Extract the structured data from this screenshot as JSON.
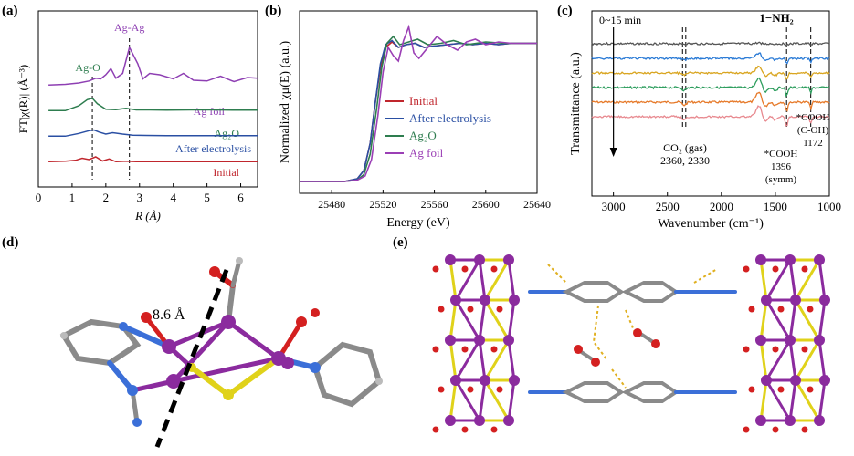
{
  "panels": {
    "a": {
      "label": "(a)"
    },
    "b": {
      "label": "(b)"
    },
    "c": {
      "label": "(c)"
    },
    "d": {
      "label": "(d)"
    },
    "e": {
      "label": "(e)"
    }
  },
  "chart_data": [
    {
      "id": "a",
      "type": "line",
      "xlabel": "R (Å)",
      "ylabel": "FT|χ(R)| (Å⁻³)",
      "xlim": [
        0,
        6.5
      ],
      "xticks": [
        0,
        1,
        2,
        3,
        4,
        5,
        6
      ],
      "annotations": [
        {
          "text": "Ag-O",
          "x": 1.6
        },
        {
          "text": "Ag-Ag",
          "x": 2.7
        }
      ],
      "series": [
        {
          "name": "Ag foil",
          "color": "#8e3fb3",
          "offset": 3,
          "x": [
            0.3,
            0.8,
            1.2,
            1.5,
            1.7,
            1.85,
            2.0,
            2.15,
            2.3,
            2.5,
            2.7,
            2.95,
            3.1,
            3.3,
            3.6,
            4.0,
            4.3,
            4.6,
            5.0,
            5.4,
            5.8,
            6.2,
            6.5
          ],
          "y": [
            0.05,
            0.1,
            0.2,
            0.35,
            0.55,
            0.5,
            0.8,
            1.25,
            0.55,
            0.9,
            2.8,
            1.6,
            0.5,
            0.9,
            0.8,
            0.5,
            0.9,
            0.4,
            0.35,
            0.7,
            0.3,
            0.6,
            0.55
          ]
        },
        {
          "name": "Ag₂O",
          "color": "#2e7d4f",
          "offset": 2,
          "x": [
            0.3,
            0.8,
            1.2,
            1.45,
            1.6,
            1.75,
            2.0,
            2.3,
            2.6,
            2.9,
            3.3,
            3.8,
            4.5,
            5.2,
            6.0,
            6.5
          ],
          "y": [
            0.05,
            0.05,
            0.4,
            0.85,
            0.95,
            0.55,
            0.15,
            0.12,
            0.22,
            0.1,
            0.1,
            0.08,
            0.1,
            0.1,
            0.08,
            0.08
          ]
        },
        {
          "name": "After electrolysis",
          "color": "#2a4fa3",
          "offset": 1,
          "x": [
            0.3,
            0.8,
            1.2,
            1.5,
            1.65,
            1.8,
            2.0,
            2.2,
            2.5,
            2.8,
            3.2,
            3.8,
            4.5,
            5.2,
            6.0,
            6.5
          ],
          "y": [
            0.05,
            0.05,
            0.25,
            0.45,
            0.5,
            0.35,
            0.2,
            0.3,
            0.2,
            0.12,
            0.1,
            0.08,
            0.08,
            0.08,
            0.08,
            0.08
          ]
        },
        {
          "name": "Initial",
          "color": "#c0262d",
          "offset": 0,
          "x": [
            0.3,
            0.8,
            1.1,
            1.3,
            1.5,
            1.7,
            1.9,
            2.1,
            2.3,
            2.6,
            2.9,
            3.3,
            3.8,
            4.5,
            5.2,
            6.0,
            6.5
          ],
          "y": [
            0.05,
            0.08,
            0.15,
            0.3,
            0.2,
            0.4,
            0.1,
            0.25,
            0.05,
            0.08,
            0.05,
            0.06,
            0.05,
            0.05,
            0.05,
            0.05,
            0.05
          ]
        }
      ]
    },
    {
      "id": "b",
      "type": "line",
      "xlabel": "Energy (eV)",
      "ylabel": "Normalized χμ(E) (a.u.)",
      "xlim": [
        25455,
        25640
      ],
      "xticks": [
        25480,
        25520,
        25560,
        25600,
        25640
      ],
      "series": [
        {
          "name": "Initial",
          "color": "#c0262d",
          "x": [
            25455,
            25490,
            25500,
            25505,
            25510,
            25514,
            25518,
            25522,
            25527,
            25532,
            25538,
            25545,
            25552,
            25560,
            25570,
            25580,
            25590,
            25600,
            25610,
            25620,
            25630,
            25640
          ],
          "y": [
            0.02,
            0.02,
            0.04,
            0.1,
            0.3,
            0.6,
            0.85,
            1.0,
            1.04,
            1.0,
            1.02,
            1.03,
            1.0,
            1.01,
            1.02,
            1.03,
            1.02,
            1.03,
            1.02,
            1.03,
            1.03,
            1.03
          ]
        },
        {
          "name": "After electrolysis",
          "color": "#2a4fa3",
          "x": [
            25455,
            25490,
            25500,
            25505,
            25510,
            25514,
            25518,
            25522,
            25527,
            25532,
            25538,
            25545,
            25552,
            25560,
            25570,
            25580,
            25590,
            25600,
            25610,
            25620,
            25630,
            25640
          ],
          "y": [
            0.02,
            0.02,
            0.04,
            0.1,
            0.3,
            0.6,
            0.88,
            1.02,
            1.05,
            1.0,
            1.02,
            1.03,
            1.0,
            1.01,
            1.02,
            1.03,
            1.02,
            1.03,
            1.02,
            1.03,
            1.03,
            1.03
          ]
        },
        {
          "name": "Ag₂O",
          "color": "#2e7d4f",
          "x": [
            25455,
            25490,
            25500,
            25505,
            25510,
            25515,
            25519,
            25523,
            25528,
            25533,
            25540,
            25547,
            25555,
            25565,
            25575,
            25585,
            25600,
            25615,
            25630,
            25640
          ],
          "y": [
            0.02,
            0.02,
            0.03,
            0.07,
            0.22,
            0.55,
            0.85,
            1.03,
            1.08,
            1.02,
            1.04,
            1.06,
            1.02,
            1.03,
            1.05,
            1.02,
            1.04,
            1.03,
            1.03,
            1.03
          ]
        },
        {
          "name": "Ag foil",
          "color": "#9b3fb5",
          "x": [
            25455,
            25490,
            25500,
            25506,
            25511,
            25516,
            25520,
            25524,
            25528,
            25532,
            25536,
            25540,
            25544,
            25548,
            25555,
            25562,
            25570,
            25578,
            25585,
            25592,
            25600,
            25610,
            25620,
            25630,
            25640
          ],
          "y": [
            0.02,
            0.02,
            0.03,
            0.06,
            0.18,
            0.5,
            0.82,
            1.0,
            0.94,
            0.9,
            1.05,
            1.15,
            0.96,
            0.92,
            1.0,
            1.08,
            1.02,
            0.98,
            1.04,
            1.06,
            1.02,
            1.04,
            1.03,
            1.03,
            1.03
          ]
        }
      ]
    },
    {
      "id": "c",
      "type": "line",
      "xlabel": "Wavenumber (cm⁻¹)",
      "ylabel": "Transmittance (a.u.)",
      "xlim": [
        3200,
        1000
      ],
      "xticks": [
        3000,
        2500,
        2000,
        1500,
        1000
      ],
      "annotations": [
        {
          "text": "0~15 min"
        },
        {
          "text": "1−NH₂"
        },
        {
          "text": "CO₂ (gas)"
        },
        {
          "text": "2360, 2330"
        },
        {
          "text": "*COOH"
        },
        {
          "text": "1396"
        },
        {
          "text": "(symm)"
        },
        {
          "text": "*COOH"
        },
        {
          "text": "(C-OH)"
        },
        {
          "text": "1172"
        }
      ],
      "marker_lines": [
        2360,
        2330,
        1396,
        1172
      ],
      "series": [
        {
          "color": "#555555",
          "level": 0,
          "dip": 0.1
        },
        {
          "color": "#2b7bd6",
          "level": 1,
          "dip": 0.6
        },
        {
          "color": "#d9a520",
          "level": 2,
          "dip": 0.8
        },
        {
          "color": "#2e9e5e",
          "level": 3,
          "dip": 1.0
        },
        {
          "color": "#e67a2a",
          "level": 4,
          "dip": 1.1
        },
        {
          "color": "#e88a90",
          "level": 5,
          "dip": 1.2
        }
      ]
    }
  ],
  "structure_d": {
    "distance_label": "8.6 Å"
  }
}
